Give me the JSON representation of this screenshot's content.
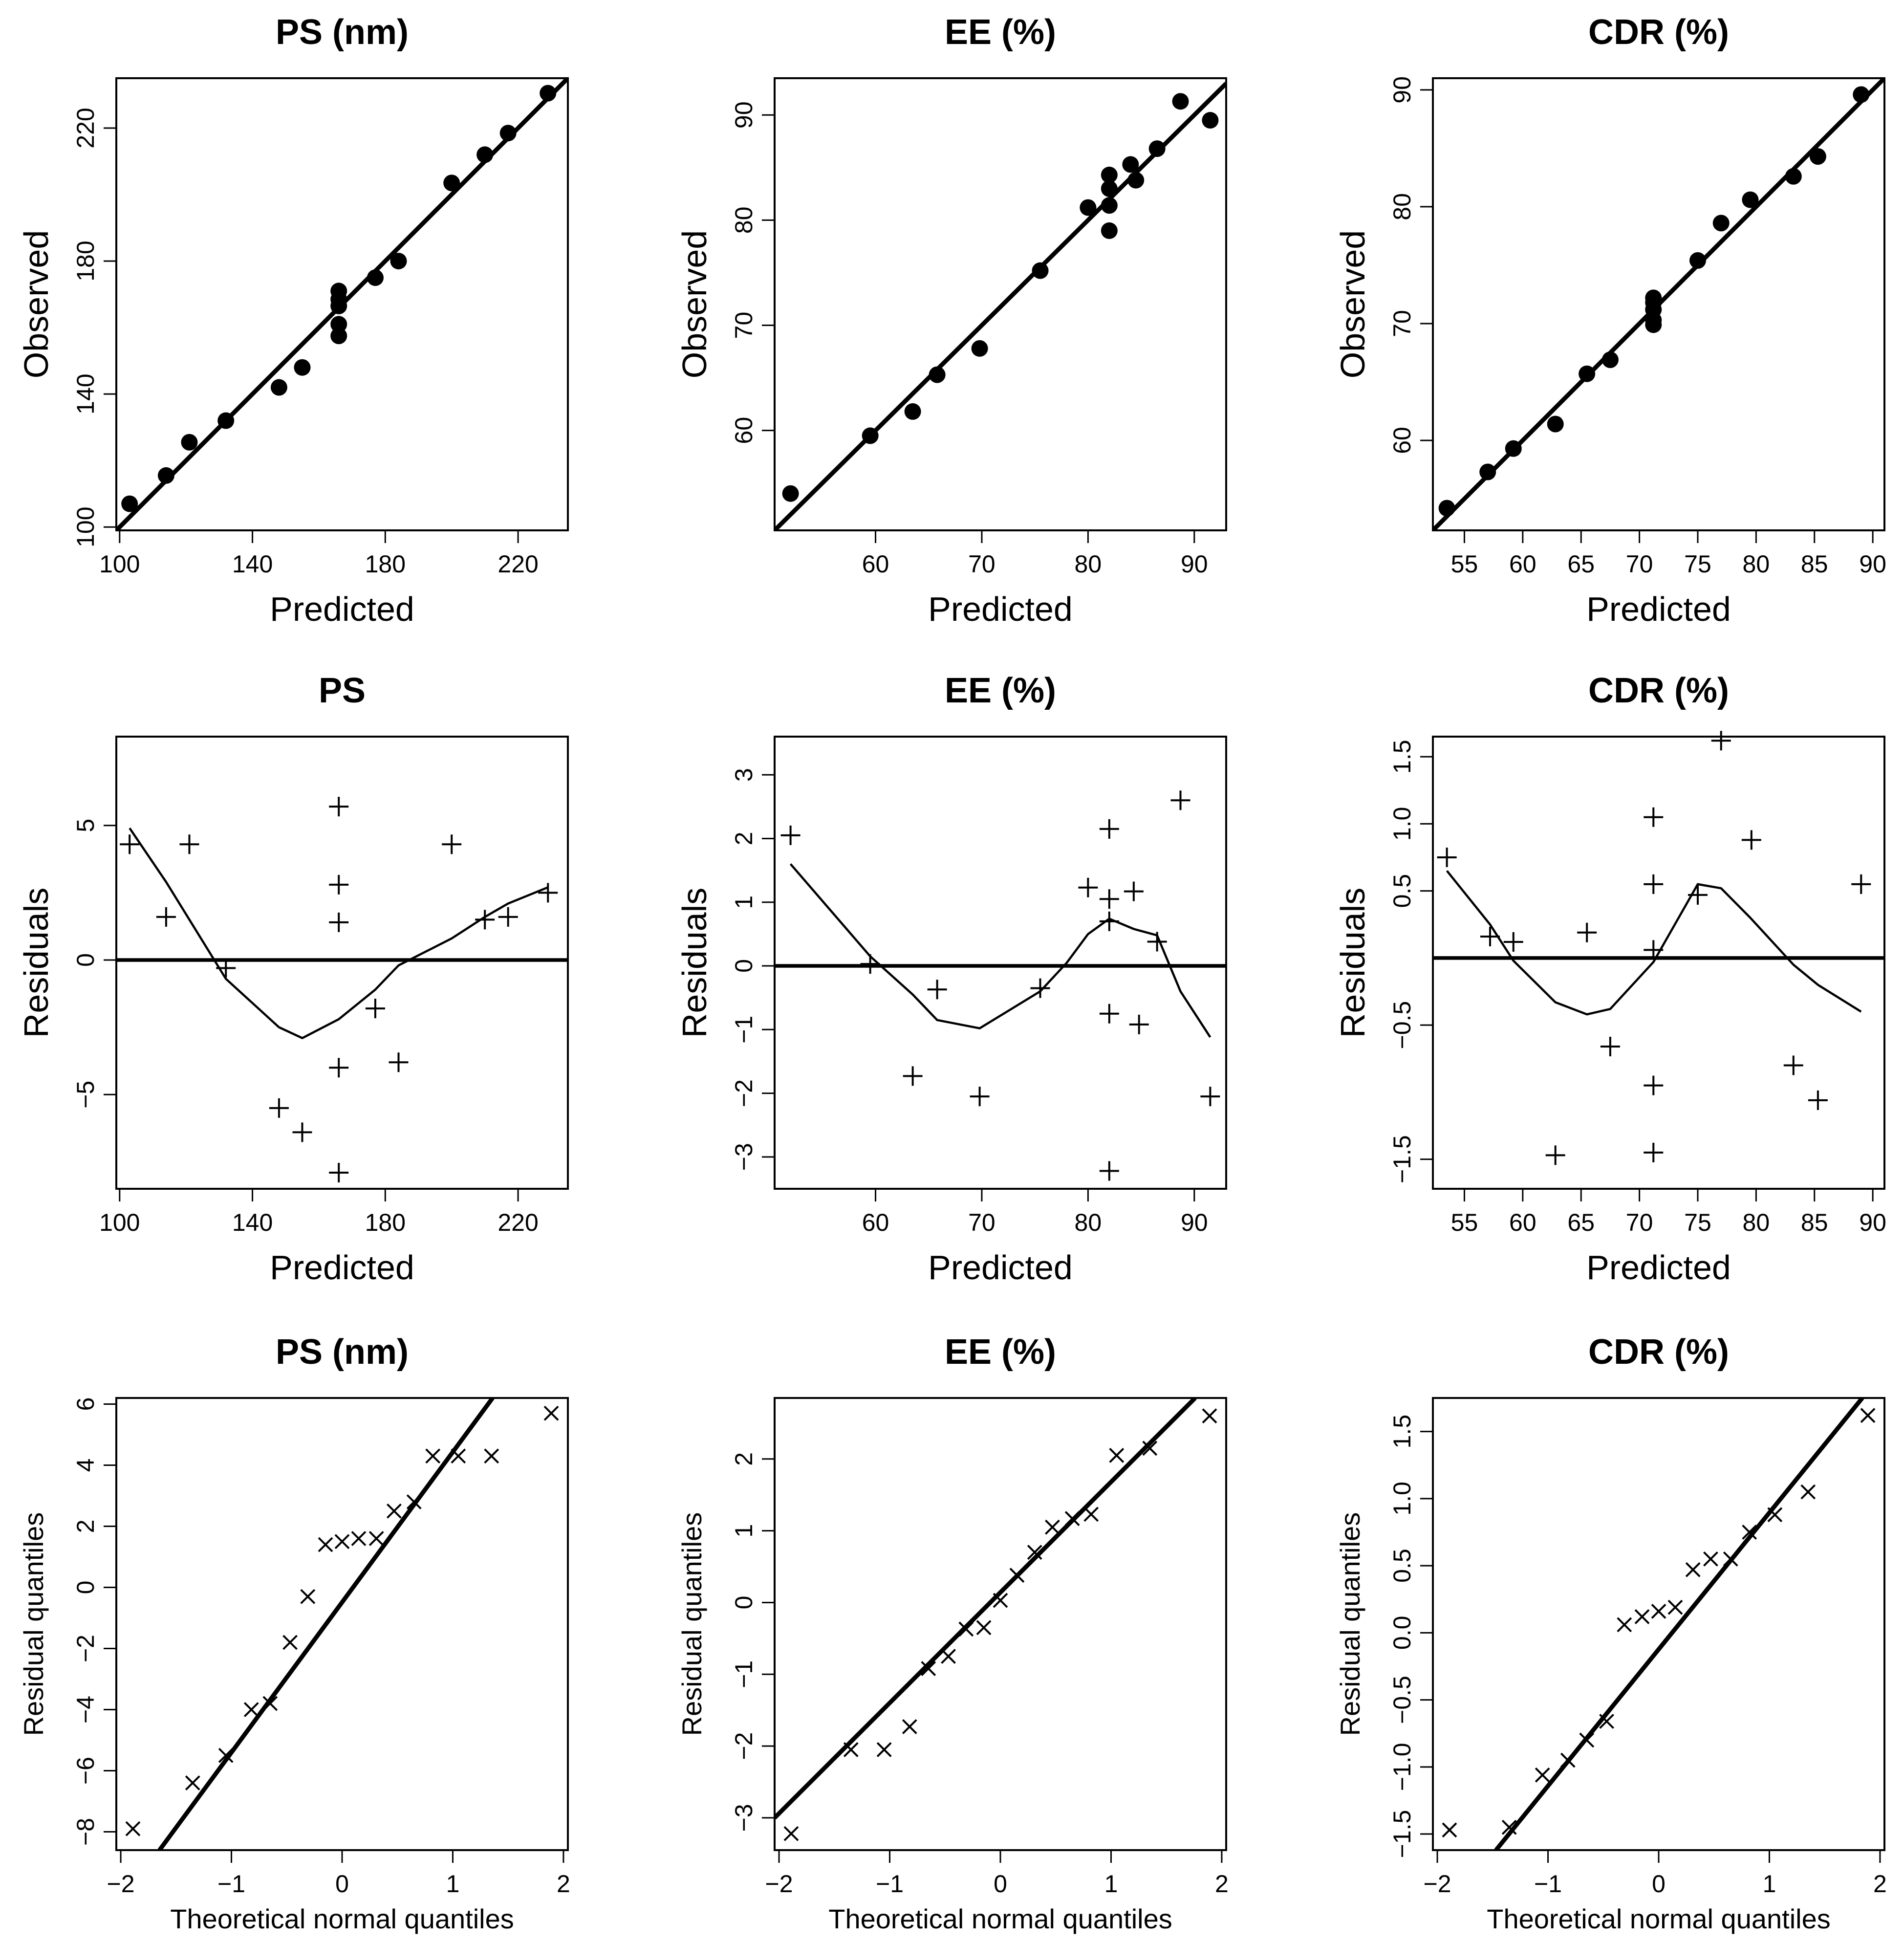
{
  "figure": {
    "background": "#ffffff",
    "ink": "#000000"
  },
  "chart_data": [
    {
      "id": "obs-ps",
      "type": "scatter",
      "title": "PS (nm)",
      "xlabel": "Predicted",
      "ylabel": "Observed",
      "xlim": [
        99,
        235
      ],
      "ylim": [
        99,
        235
      ],
      "xticks": [
        100,
        140,
        180,
        220
      ],
      "xtick_labels": [
        "100",
        "140",
        "180",
        "220"
      ],
      "yticks": [
        100,
        140,
        180,
        220
      ],
      "ytick_labels": [
        "100",
        "140",
        "180",
        "220"
      ],
      "marker": "dot",
      "points": [
        [
          103,
          107
        ],
        [
          114,
          115.5
        ],
        [
          121,
          125.5
        ],
        [
          132,
          132
        ],
        [
          148,
          142
        ],
        [
          155,
          148
        ],
        [
          166,
          157.5
        ],
        [
          166,
          161
        ],
        [
          166,
          166.5
        ],
        [
          166,
          168.5
        ],
        [
          166,
          171
        ],
        [
          177,
          175
        ],
        [
          184,
          180
        ],
        [
          200,
          203.5
        ],
        [
          210,
          212
        ],
        [
          217,
          218.5
        ],
        [
          229,
          230.5
        ]
      ],
      "lines": [
        {
          "kind": "abline",
          "a": 0,
          "b": 1,
          "width": 3
        }
      ]
    },
    {
      "id": "obs-ee",
      "type": "scatter",
      "title": "EE (%)",
      "xlabel": "Predicted",
      "ylabel": "Observed",
      "xlim": [
        50.5,
        93
      ],
      "ylim": [
        50.5,
        93.5
      ],
      "xticks": [
        60,
        70,
        80,
        90
      ],
      "xtick_labels": [
        "60",
        "70",
        "80",
        "90"
      ],
      "yticks": [
        60,
        70,
        80,
        90
      ],
      "ytick_labels": [
        "60",
        "70",
        "80",
        "90"
      ],
      "marker": "dot",
      "points": [
        [
          52,
          54
        ],
        [
          59.5,
          59.5
        ],
        [
          63.5,
          61.8
        ],
        [
          65.8,
          65.3
        ],
        [
          69.8,
          67.8
        ],
        [
          75.5,
          75.2
        ],
        [
          80,
          81.2
        ],
        [
          82,
          79
        ],
        [
          82,
          81.4
        ],
        [
          82,
          83
        ],
        [
          82,
          84.3
        ],
        [
          84,
          85.3
        ],
        [
          84.5,
          83.8
        ],
        [
          86.5,
          86.8
        ],
        [
          88.7,
          91.3
        ],
        [
          91.5,
          89.5
        ]
      ],
      "lines": [
        {
          "kind": "abline",
          "a": 0,
          "b": 1,
          "width": 3
        }
      ]
    },
    {
      "id": "obs-cdr",
      "type": "scatter",
      "title": "CDR (%)",
      "xlabel": "Predicted",
      "ylabel": "Observed",
      "xlim": [
        52.3,
        91
      ],
      "ylim": [
        52.3,
        91
      ],
      "xticks": [
        55,
        60,
        65,
        70,
        75,
        80,
        85,
        90
      ],
      "xtick_labels": [
        "55",
        "60",
        "65",
        "70",
        "75",
        "80",
        "85",
        "90"
      ],
      "yticks": [
        60,
        70,
        80,
        90
      ],
      "ytick_labels": [
        "60",
        "70",
        "80",
        "90"
      ],
      "marker": "dot",
      "points": [
        [
          53.5,
          54.2
        ],
        [
          57,
          57.3
        ],
        [
          59.2,
          59.3
        ],
        [
          62.8,
          61.4
        ],
        [
          65.5,
          65.7
        ],
        [
          67.5,
          66.9
        ],
        [
          71.2,
          69.9
        ],
        [
          71.2,
          70.3
        ],
        [
          71.2,
          71.2
        ],
        [
          71.2,
          71.8
        ],
        [
          71.2,
          72.2
        ],
        [
          75,
          75.4
        ],
        [
          77,
          78.6
        ],
        [
          79.5,
          80.6
        ],
        [
          83.2,
          82.6
        ],
        [
          85.3,
          84.3
        ],
        [
          89,
          89.6
        ]
      ],
      "lines": [
        {
          "kind": "abline",
          "a": 0,
          "b": 1,
          "width": 3
        }
      ]
    },
    {
      "id": "res-ps",
      "type": "scatter",
      "title": "PS",
      "xlabel": "Predicted",
      "ylabel": "Residuals",
      "xlim": [
        99,
        235
      ],
      "ylim": [
        -8.5,
        8.3
      ],
      "xticks": [
        100,
        140,
        180,
        220
      ],
      "xtick_labels": [
        "100",
        "140",
        "180",
        "220"
      ],
      "yticks": [
        -5,
        0,
        5
      ],
      "ytick_labels": [
        "−5",
        "0",
        "5"
      ],
      "marker": "plus",
      "points": [
        [
          103,
          4.3
        ],
        [
          114,
          1.6
        ],
        [
          121,
          4.3
        ],
        [
          132,
          -0.3
        ],
        [
          148,
          -5.5
        ],
        [
          155,
          -6.4
        ],
        [
          166,
          5.7
        ],
        [
          166,
          2.8
        ],
        [
          166,
          1.4
        ],
        [
          166,
          -4.0
        ],
        [
          166,
          -7.9
        ],
        [
          177,
          -1.8
        ],
        [
          184,
          -3.8
        ],
        [
          200,
          4.3
        ],
        [
          210,
          1.5
        ],
        [
          217,
          1.6
        ],
        [
          229,
          2.5
        ]
      ],
      "lines": [
        {
          "kind": "hline",
          "y": 0,
          "width": 3
        },
        {
          "kind": "smooth",
          "width": 1.5,
          "points": [
            [
              103,
              4.9
            ],
            [
              114,
              2.9
            ],
            [
              121,
              1.5
            ],
            [
              132,
              -0.7
            ],
            [
              148,
              -2.5
            ],
            [
              155,
              -2.9
            ],
            [
              166,
              -2.2
            ],
            [
              177,
              -1.1
            ],
            [
              184,
              -0.2
            ],
            [
              200,
              0.8
            ],
            [
              210,
              1.6
            ],
            [
              217,
              2.1
            ],
            [
              229,
              2.7
            ]
          ]
        }
      ]
    },
    {
      "id": "res-ee",
      "type": "scatter",
      "title": "EE (%)",
      "xlabel": "Predicted",
      "ylabel": "Residuals",
      "xlim": [
        50.5,
        93
      ],
      "ylim": [
        -3.5,
        3.6
      ],
      "xticks": [
        60,
        70,
        80,
        90
      ],
      "xtick_labels": [
        "60",
        "70",
        "80",
        "90"
      ],
      "yticks": [
        -3,
        -2,
        -1,
        0,
        1,
        2,
        3
      ],
      "ytick_labels": [
        "−3",
        "−2",
        "−1",
        "0",
        "1",
        "2",
        "3"
      ],
      "marker": "plus",
      "points": [
        [
          52,
          2.05
        ],
        [
          59.5,
          0.03
        ],
        [
          63.5,
          -1.73
        ],
        [
          65.8,
          -0.37
        ],
        [
          69.8,
          -2.05
        ],
        [
          75.5,
          -0.35
        ],
        [
          80,
          1.23
        ],
        [
          82,
          2.15
        ],
        [
          82,
          1.05
        ],
        [
          82,
          0.7
        ],
        [
          82,
          -0.75
        ],
        [
          82,
          -3.22
        ],
        [
          84.3,
          1.17
        ],
        [
          84.8,
          -0.92
        ],
        [
          86.5,
          0.38
        ],
        [
          88.7,
          2.6
        ],
        [
          91.5,
          -2.05
        ]
      ],
      "lines": [
        {
          "kind": "hline",
          "y": 0,
          "width": 3
        },
        {
          "kind": "smooth",
          "width": 1.5,
          "points": [
            [
              52,
              1.6
            ],
            [
              59.5,
              0.15
            ],
            [
              63.5,
              -0.45
            ],
            [
              65.8,
              -0.85
            ],
            [
              69.8,
              -0.98
            ],
            [
              75.5,
              -0.4
            ],
            [
              78,
              0.05
            ],
            [
              80,
              0.5
            ],
            [
              82,
              0.74
            ],
            [
              84.3,
              0.58
            ],
            [
              86.5,
              0.48
            ],
            [
              88.7,
              -0.4
            ],
            [
              91.5,
              -1.12
            ]
          ]
        }
      ]
    },
    {
      "id": "res-cdr",
      "type": "scatter",
      "title": "CDR (%)",
      "xlabel": "Predicted",
      "ylabel": "Residuals",
      "xlim": [
        52.3,
        91
      ],
      "ylim": [
        -1.72,
        1.65
      ],
      "xticks": [
        55,
        60,
        65,
        70,
        75,
        80,
        85,
        90
      ],
      "xtick_labels": [
        "55",
        "60",
        "65",
        "70",
        "75",
        "80",
        "85",
        "90"
      ],
      "yticks": [
        -1.5,
        -0.5,
        0.5,
        1.0,
        1.5
      ],
      "ytick_labels": [
        "−1.5",
        "−0.5",
        "0.5",
        "1.0",
        "1.5"
      ],
      "marker": "plus",
      "points": [
        [
          53.5,
          0.75
        ],
        [
          57.2,
          0.16
        ],
        [
          59.2,
          0.12
        ],
        [
          62.8,
          -1.47
        ],
        [
          65.5,
          0.19
        ],
        [
          67.5,
          -0.66
        ],
        [
          71.2,
          1.05
        ],
        [
          71.2,
          0.55
        ],
        [
          71.2,
          0.06
        ],
        [
          71.2,
          -0.95
        ],
        [
          71.2,
          -1.45
        ],
        [
          75,
          0.47
        ],
        [
          77,
          1.62
        ],
        [
          79.6,
          0.88
        ],
        [
          83.2,
          -0.8
        ],
        [
          85.3,
          -1.06
        ],
        [
          89,
          0.55
        ]
      ],
      "lines": [
        {
          "kind": "hline",
          "y": 0,
          "width": 3
        },
        {
          "kind": "smooth",
          "width": 1.5,
          "points": [
            [
              53.5,
              0.65
            ],
            [
              57.2,
              0.25
            ],
            [
              59.2,
              -0.02
            ],
            [
              62.8,
              -0.33
            ],
            [
              65.5,
              -0.42
            ],
            [
              67.5,
              -0.38
            ],
            [
              71.2,
              -0.03
            ],
            [
              75,
              0.55
            ],
            [
              77,
              0.52
            ],
            [
              79.5,
              0.3
            ],
            [
              83.2,
              -0.05
            ],
            [
              85.3,
              -0.2
            ],
            [
              89,
              -0.4
            ]
          ]
        }
      ]
    },
    {
      "id": "qq-ps",
      "type": "scatter",
      "title": "PS (nm)",
      "xlabel": "Theoretical normal quantiles",
      "ylabel": "Residual quantiles",
      "xlim": [
        -2.04,
        2.04
      ],
      "ylim": [
        -8.6,
        6.2
      ],
      "xticks": [
        -2,
        -1,
        0,
        1,
        2
      ],
      "xtick_labels": [
        "−2",
        "−1",
        "0",
        "1",
        "2"
      ],
      "yticks": [
        -8,
        -6,
        -4,
        -2,
        0,
        2,
        4,
        6
      ],
      "ytick_labels": [
        "−8",
        "−6",
        "−4",
        "−2",
        "0",
        "2",
        "4",
        "6"
      ],
      "marker": "cross",
      "points": [
        [
          -1.89,
          -7.9
        ],
        [
          -1.35,
          -6.4
        ],
        [
          -1.05,
          -5.5
        ],
        [
          -0.82,
          -4.0
        ],
        [
          -0.65,
          -3.8
        ],
        [
          -0.47,
          -1.8
        ],
        [
          -0.31,
          -0.3
        ],
        [
          -0.15,
          1.4
        ],
        [
          0.0,
          1.5
        ],
        [
          0.15,
          1.6
        ],
        [
          0.31,
          1.6
        ],
        [
          0.47,
          2.5
        ],
        [
          0.65,
          2.8
        ],
        [
          0.82,
          4.3
        ],
        [
          1.05,
          4.3
        ],
        [
          1.35,
          4.3
        ],
        [
          1.89,
          5.7
        ]
      ],
      "lines": [
        {
          "kind": "segment",
          "width": 3,
          "points": [
            [
              -1.65,
              -8.6
            ],
            [
              1.36,
              6.2
            ]
          ]
        }
      ]
    },
    {
      "id": "qq-ee",
      "type": "scatter",
      "title": "EE (%)",
      "xlabel": "Theoretical normal quantiles",
      "ylabel": "Residual quantiles",
      "xlim": [
        -2.04,
        2.04
      ],
      "ylim": [
        -3.45,
        2.85
      ],
      "xticks": [
        -2,
        -1,
        0,
        1,
        2
      ],
      "xtick_labels": [
        "−2",
        "−1",
        "0",
        "1",
        "2"
      ],
      "yticks": [
        -3,
        -2,
        -1,
        0,
        1,
        2
      ],
      "ytick_labels": [
        "−3",
        "−2",
        "−1",
        "0",
        "1",
        "2"
      ],
      "marker": "cross",
      "points": [
        [
          -1.89,
          -3.22
        ],
        [
          -1.35,
          -2.05
        ],
        [
          -1.05,
          -2.05
        ],
        [
          -0.82,
          -1.73
        ],
        [
          -0.65,
          -0.92
        ],
        [
          -0.47,
          -0.75
        ],
        [
          -0.31,
          -0.37
        ],
        [
          -0.15,
          -0.35
        ],
        [
          0.0,
          0.03
        ],
        [
          0.15,
          0.38
        ],
        [
          0.31,
          0.7
        ],
        [
          0.47,
          1.05
        ],
        [
          0.65,
          1.17
        ],
        [
          0.82,
          1.23
        ],
        [
          1.05,
          2.05
        ],
        [
          1.35,
          2.15
        ],
        [
          1.89,
          2.6
        ]
      ],
      "lines": [
        {
          "kind": "segment",
          "width": 3,
          "points": [
            [
              -2.04,
              -3.0
            ],
            [
              1.76,
              2.85
            ]
          ]
        }
      ]
    },
    {
      "id": "qq-cdr",
      "type": "scatter",
      "title": "CDR (%)",
      "xlabel": "Theoretical normal quantiles",
      "ylabel": "Residual quantiles",
      "xlim": [
        -2.04,
        2.04
      ],
      "ylim": [
        -1.62,
        1.75
      ],
      "xticks": [
        -2,
        -1,
        0,
        1,
        2
      ],
      "xtick_labels": [
        "−2",
        "−1",
        "0",
        "1",
        "2"
      ],
      "yticks": [
        -1.5,
        -1.0,
        -0.5,
        0.0,
        0.5,
        1.0,
        1.5
      ],
      "ytick_labels": [
        "−1.5",
        "−1.0",
        "−0.5",
        "0.0",
        "0.5",
        "1.0",
        "1.5"
      ],
      "marker": "cross",
      "points": [
        [
          -1.89,
          -1.47
        ],
        [
          -1.35,
          -1.45
        ],
        [
          -1.05,
          -1.06
        ],
        [
          -0.82,
          -0.95
        ],
        [
          -0.65,
          -0.8
        ],
        [
          -0.47,
          -0.66
        ],
        [
          -0.31,
          0.06
        ],
        [
          -0.15,
          0.12
        ],
        [
          0.0,
          0.16
        ],
        [
          0.15,
          0.19
        ],
        [
          0.31,
          0.47
        ],
        [
          0.47,
          0.55
        ],
        [
          0.65,
          0.55
        ],
        [
          0.82,
          0.75
        ],
        [
          1.05,
          0.88
        ],
        [
          1.35,
          1.05
        ],
        [
          1.89,
          1.62
        ]
      ],
      "lines": [
        {
          "kind": "segment",
          "width": 3,
          "points": [
            [
              -1.47,
              -1.62
            ],
            [
              1.84,
              1.75
            ]
          ]
        }
      ]
    }
  ]
}
